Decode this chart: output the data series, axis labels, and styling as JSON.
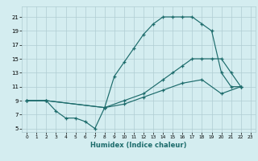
{
  "xlabel": "Humidex (Indice chaleur)",
  "bg_color": "#d4edf0",
  "grid_color": "#b0cdd2",
  "line_color": "#1c6b6b",
  "xlim": [
    -0.5,
    23.5
  ],
  "ylim": [
    4.5,
    22.5
  ],
  "xticks": [
    0,
    1,
    2,
    3,
    4,
    5,
    6,
    7,
    8,
    9,
    10,
    11,
    12,
    13,
    14,
    15,
    16,
    17,
    18,
    19,
    20,
    21,
    22,
    23
  ],
  "yticks": [
    5,
    7,
    9,
    11,
    13,
    15,
    17,
    19,
    21
  ],
  "line1_x": [
    0,
    2,
    3,
    4,
    5,
    6,
    7,
    8,
    9,
    10,
    11,
    12,
    13,
    14,
    15,
    16,
    17,
    18,
    19,
    20,
    21,
    22
  ],
  "line1_y": [
    9,
    9,
    7.5,
    6.5,
    6.5,
    6,
    5,
    8,
    12.5,
    14.5,
    16.5,
    18.5,
    20,
    21,
    21,
    21,
    21,
    20,
    19,
    13,
    11,
    11
  ],
  "line2_x": [
    0,
    2,
    8,
    10,
    12,
    14,
    15,
    16,
    17,
    18,
    19,
    20,
    21,
    22
  ],
  "line2_y": [
    9,
    9,
    8,
    9,
    10,
    12,
    13,
    14,
    15,
    15,
    15,
    15,
    13,
    11
  ],
  "line3_x": [
    0,
    2,
    8,
    10,
    12,
    14,
    16,
    18,
    20,
    22
  ],
  "line3_y": [
    9,
    9,
    8,
    8.5,
    9.5,
    10.5,
    11.5,
    12,
    10,
    11
  ]
}
